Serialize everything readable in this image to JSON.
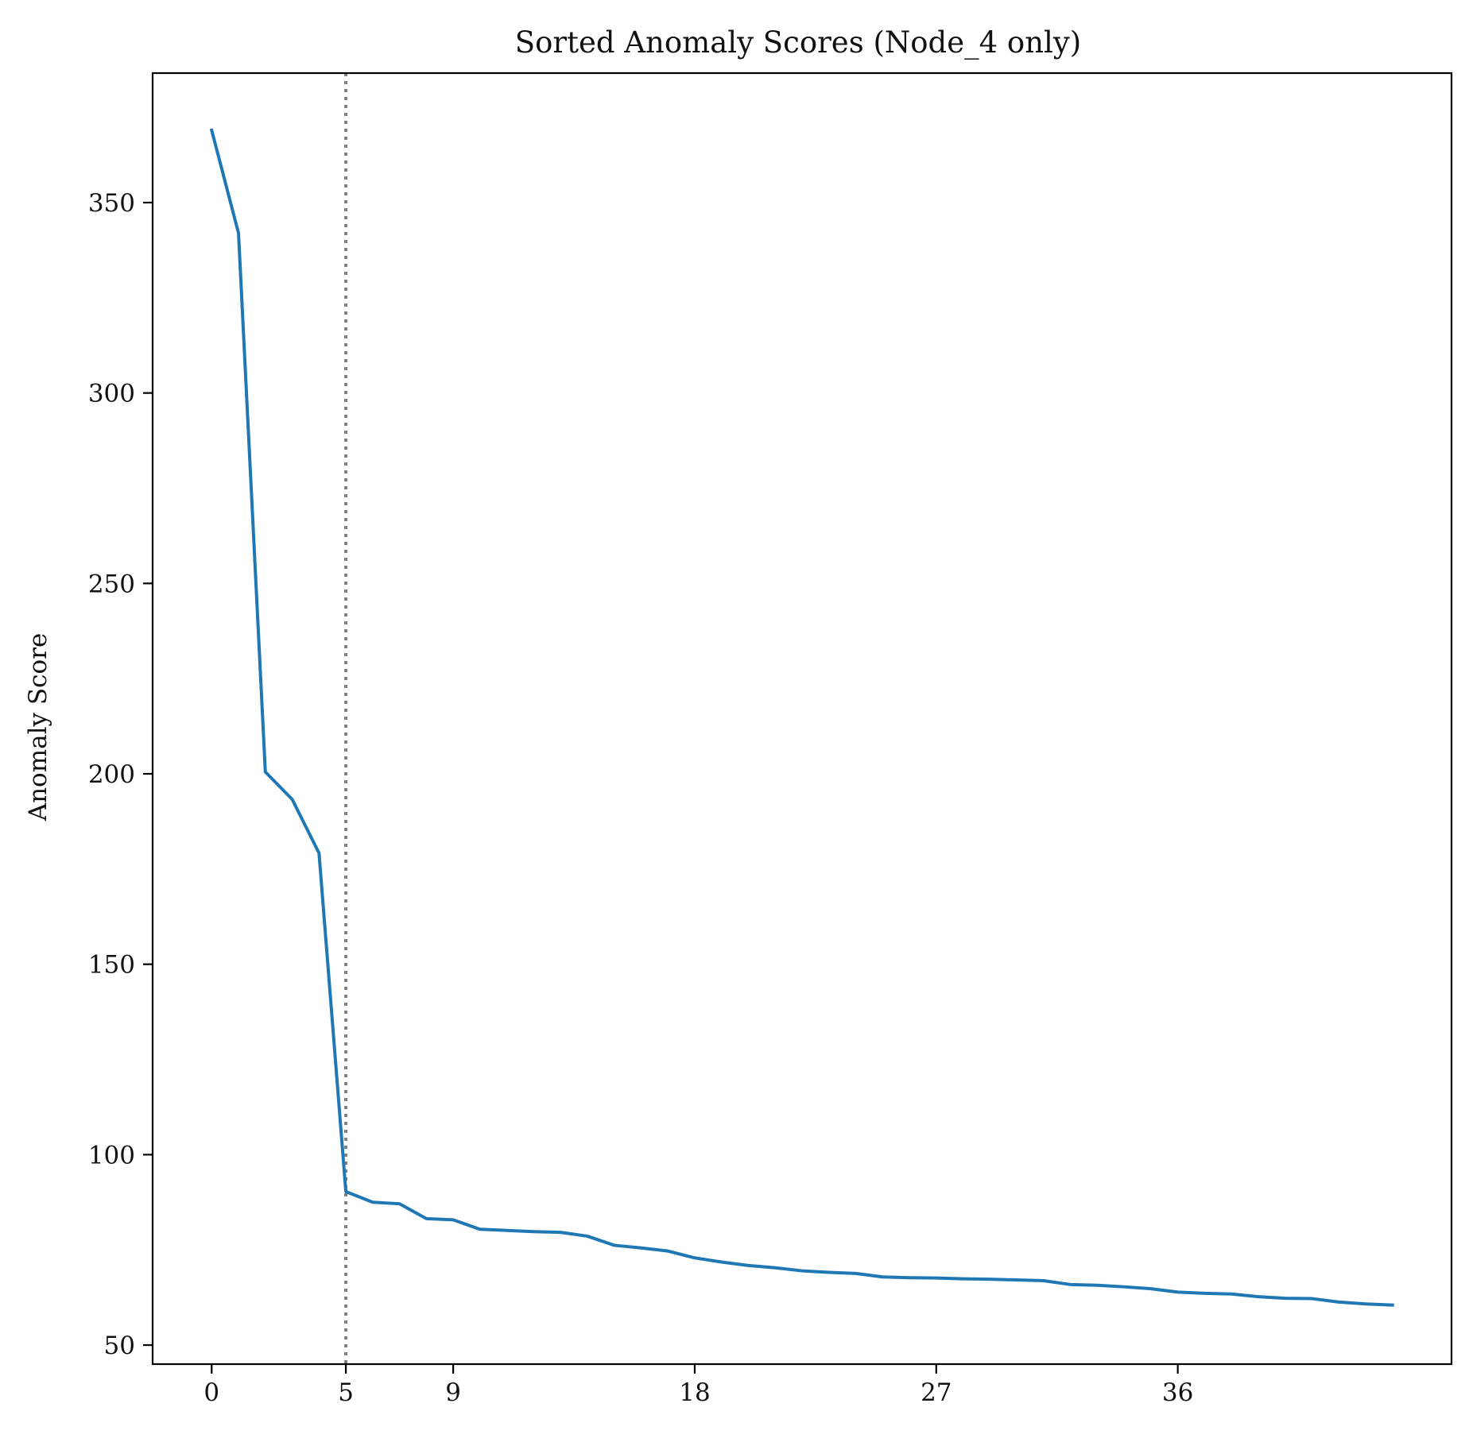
{
  "chart_data": {
    "type": "line",
    "title": "Sorted Anomaly Scores (Node_4 only)",
    "xlabel": "",
    "ylabel": "Anomaly Score",
    "xlim": [
      -2.2,
      46.2
    ],
    "ylim": [
      45,
      384
    ],
    "xticks": [
      0,
      5,
      9,
      18,
      27,
      36
    ],
    "yticks": [
      50,
      100,
      150,
      200,
      250,
      300,
      350
    ],
    "grid": false,
    "legend": "none",
    "vline": {
      "x": 5,
      "style": "dotted",
      "color": "#808080"
    },
    "series": [
      {
        "color": "#1f77b4",
        "x": [
          0,
          1,
          2,
          3,
          4,
          5,
          6,
          7,
          8,
          9,
          10,
          11,
          12,
          13,
          14,
          15,
          16,
          17,
          18,
          19,
          20,
          21,
          22,
          23,
          24,
          25,
          26,
          27,
          28,
          29,
          30,
          31,
          32,
          33,
          34,
          35,
          36,
          37,
          38,
          39,
          40,
          41,
          42,
          43,
          44
        ],
        "y": [
          369,
          342,
          200.5,
          193.3,
          179.2,
          90.3,
          87.5,
          87.1,
          83.2,
          82.9,
          80.4,
          80.1,
          79.8,
          79.6,
          78.6,
          76.2,
          75.5,
          74.7,
          72.9,
          71.8,
          70.9,
          70.3,
          69.5,
          69.1,
          68.8,
          67.9,
          67.7,
          67.6,
          67.4,
          67.3,
          67.1,
          66.9,
          65.9,
          65.7,
          65.3,
          64.8,
          63.9,
          63.6,
          63.4,
          62.7,
          62.3,
          62.2,
          61.3,
          60.8,
          60.5
        ]
      }
    ]
  }
}
